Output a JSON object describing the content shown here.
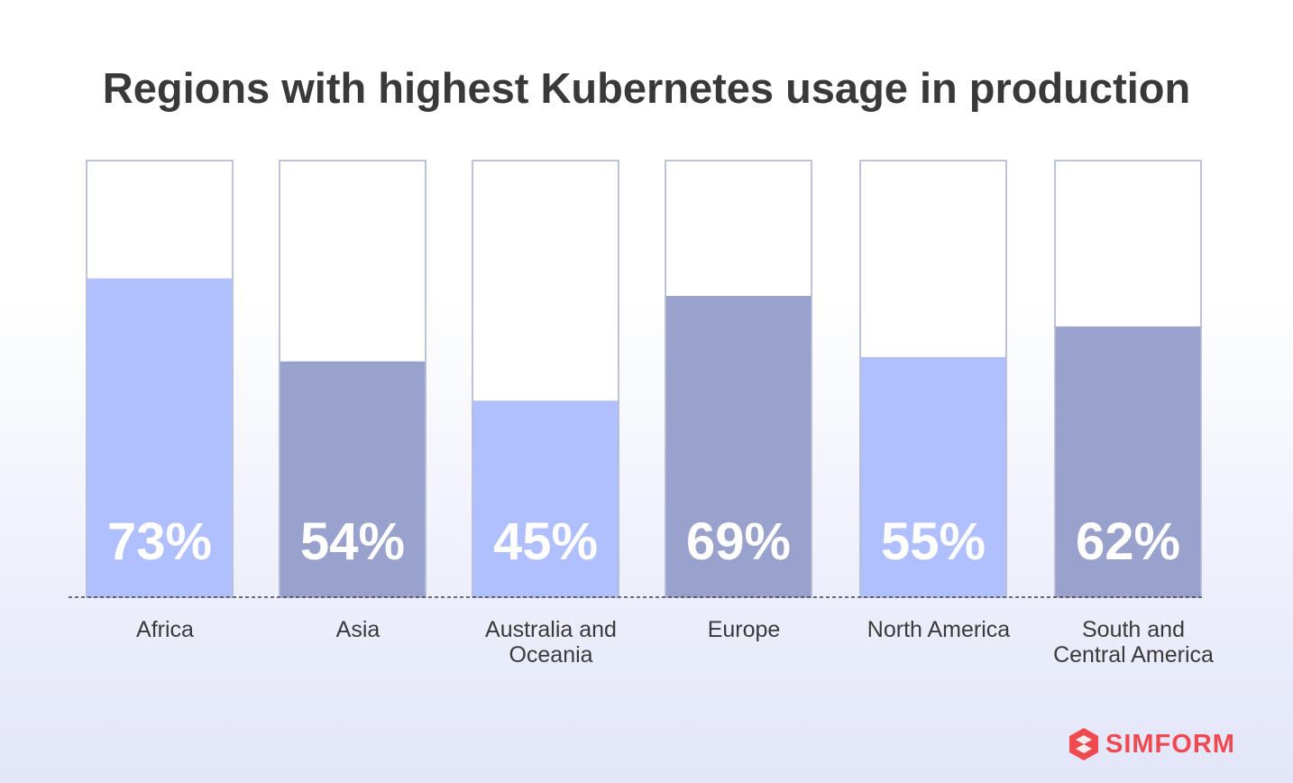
{
  "chart_data": {
    "type": "bar",
    "title": "Regions with highest Kubernetes usage in production",
    "categories": [
      "Africa",
      "Asia",
      "Australia and Oceania",
      "Europe",
      "North America",
      "South and Central America"
    ],
    "category_lines": [
      [
        "Africa"
      ],
      [
        "Asia"
      ],
      [
        "Australia and",
        "Oceania"
      ],
      [
        "Europe"
      ],
      [
        "North America"
      ],
      [
        "South and",
        "Central America"
      ]
    ],
    "values": [
      73,
      54,
      45,
      69,
      55,
      62
    ],
    "value_labels": [
      "73%",
      "54%",
      "45%",
      "69%",
      "55%",
      "62%"
    ],
    "ylim": [
      0,
      100
    ],
    "colors": [
      "#b0bffd",
      "#98a2cc",
      "#b0bffd",
      "#98a2cc",
      "#b0bffd",
      "#98a2cc"
    ],
    "frame_color": "#a9afd0",
    "baseline_style": "dashed"
  },
  "brand": {
    "name": "SIMFORM",
    "color": "#ef4a50",
    "icon": "simform-logo-icon"
  }
}
